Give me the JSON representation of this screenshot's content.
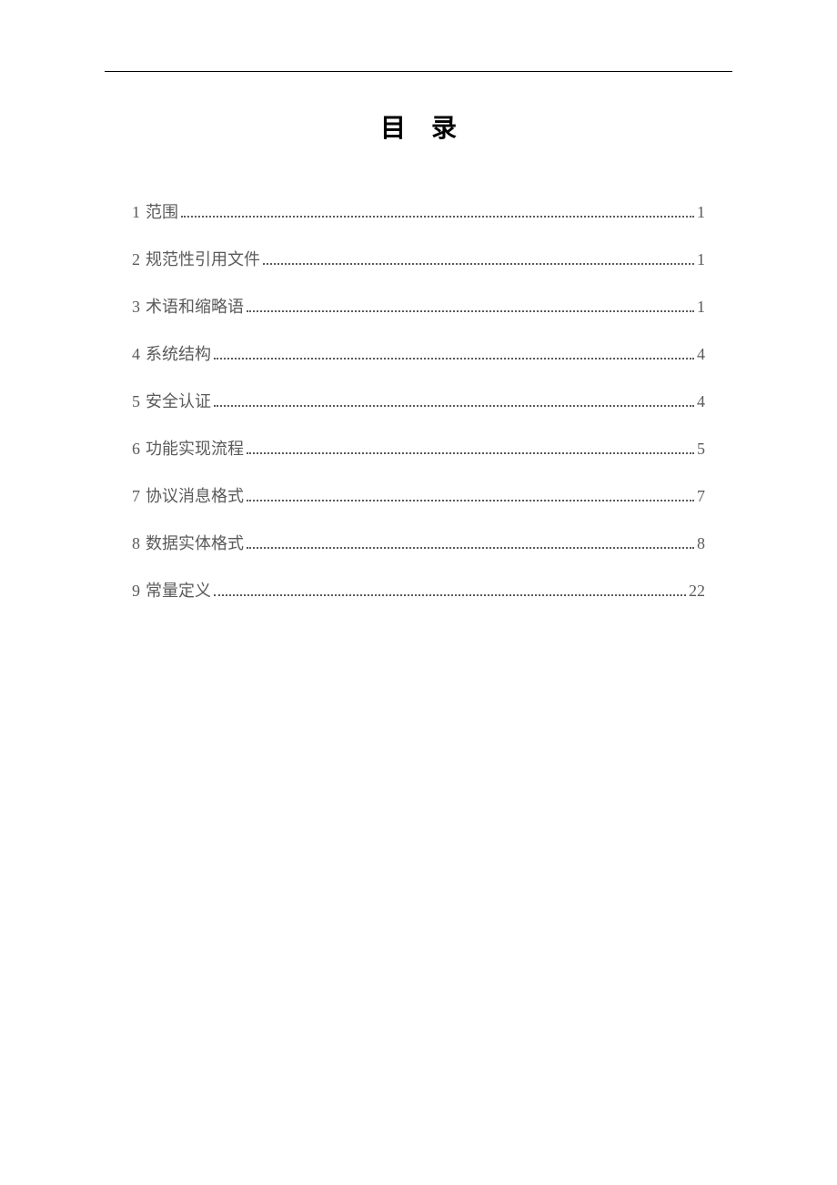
{
  "title": "目录",
  "styling": {
    "page_bg": "#ffffff",
    "text_color": "#5a5a5a",
    "title_color": "#000000",
    "rule_color": "#000000",
    "title_fontsize": 28,
    "entry_fontsize": 18,
    "title_letter_spacing": 28,
    "entry_spacing": 26,
    "font_family": "SimSun"
  },
  "toc": {
    "entries": [
      {
        "num": "1",
        "label": "范围",
        "page": "1"
      },
      {
        "num": "2",
        "label": "规范性引用文件",
        "page": "1"
      },
      {
        "num": "3",
        "label": "术语和缩略语",
        "page": "1"
      },
      {
        "num": "4",
        "label": "系统结构",
        "page": "4"
      },
      {
        "num": "5",
        "label": "安全认证",
        "page": "4"
      },
      {
        "num": "6",
        "label": "功能实现流程",
        "page": "5"
      },
      {
        "num": "7",
        "label": "协议消息格式",
        "page": "7"
      },
      {
        "num": "8",
        "label": "数据实体格式",
        "page": "8"
      },
      {
        "num": "9",
        "label": "常量定义",
        "page": "22"
      }
    ]
  }
}
